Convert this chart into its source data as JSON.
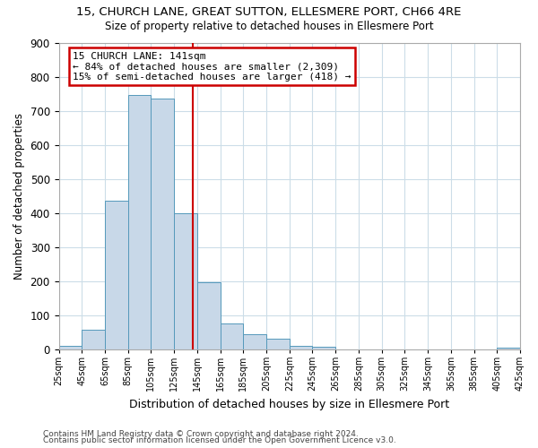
{
  "title": "15, CHURCH LANE, GREAT SUTTON, ELLESMERE PORT, CH66 4RE",
  "subtitle": "Size of property relative to detached houses in Ellesmere Port",
  "xlabel": "Distribution of detached houses by size in Ellesmere Port",
  "ylabel": "Number of detached properties",
  "bar_color": "#c8d8e8",
  "bar_edge_color": "#5599bb",
  "background_color": "#ffffff",
  "grid_color": "#ccdde8",
  "vline_color": "#cc0000",
  "vline_x": 141,
  "bin_edges": [
    25,
    45,
    65,
    85,
    105,
    125,
    145,
    165,
    185,
    205,
    225,
    245,
    265,
    285,
    305,
    325,
    345,
    365,
    385,
    405,
    425
  ],
  "bin_heights": [
    10,
    57,
    435,
    747,
    735,
    400,
    197,
    75,
    44,
    30,
    10,
    7,
    0,
    0,
    0,
    0,
    0,
    0,
    0,
    5
  ],
  "xlim": [
    25,
    425
  ],
  "ylim": [
    0,
    900
  ],
  "yticks": [
    0,
    100,
    200,
    300,
    400,
    500,
    600,
    700,
    800,
    900
  ],
  "xtick_labels": [
    "25sqm",
    "45sqm",
    "65sqm",
    "85sqm",
    "105sqm",
    "125sqm",
    "145sqm",
    "165sqm",
    "185sqm",
    "205sqm",
    "225sqm",
    "245sqm",
    "265sqm",
    "285sqm",
    "305sqm",
    "325sqm",
    "345sqm",
    "365sqm",
    "385sqm",
    "405sqm",
    "425sqm"
  ],
  "annotation_title": "15 CHURCH LANE: 141sqm",
  "annotation_line1": "← 84% of detached houses are smaller (2,309)",
  "annotation_line2": "15% of semi-detached houses are larger (418) →",
  "footer1": "Contains HM Land Registry data © Crown copyright and database right 2024.",
  "footer2": "Contains public sector information licensed under the Open Government Licence v3.0."
}
